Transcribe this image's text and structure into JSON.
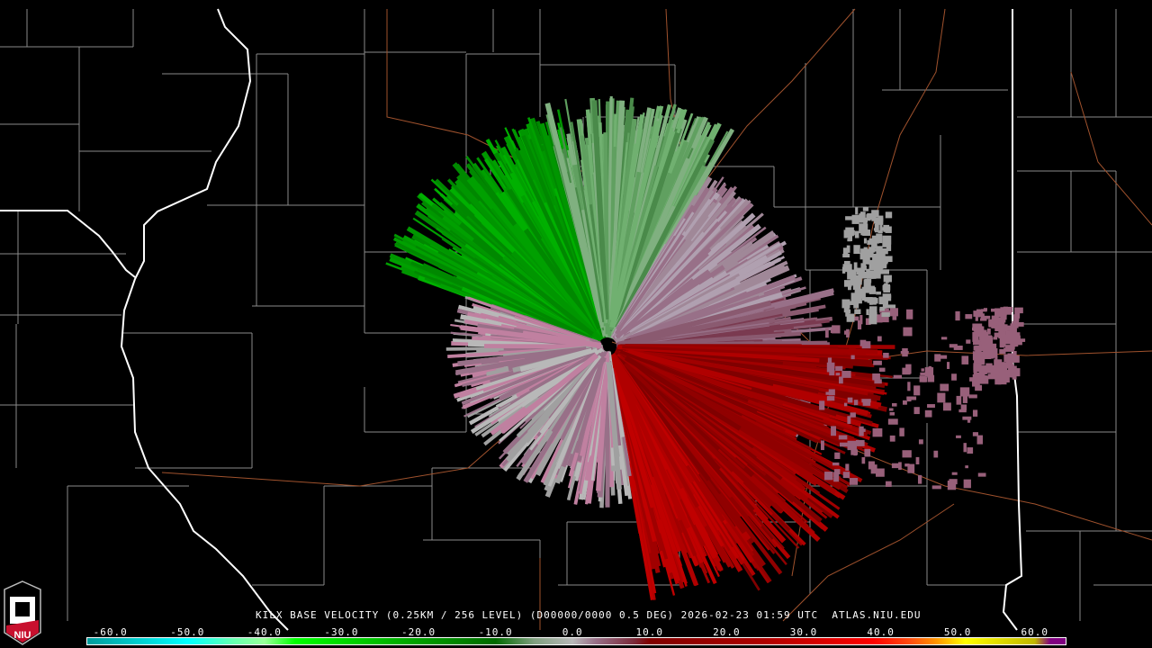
{
  "caption": {
    "station": "KILX",
    "product": "BASE VELOCITY",
    "resolution": "(0.25KM / 256 LEVEL)",
    "scan": "(D00000/0000 0.5 DEG)",
    "date": "2026-02-23",
    "time": "01:59 UTC",
    "source": "ATLAS.NIU.EDU"
  },
  "logo": {
    "text": "NIU",
    "color": "#c8102e"
  },
  "colorbar": {
    "ticks": [
      "-60.0",
      "-50.0",
      "-40.0",
      "-30.0",
      "-20.0",
      "-10.0",
      "0.0",
      "10.0",
      "20.0",
      "30.0",
      "40.0",
      "50.0",
      "60.0"
    ],
    "range": [
      -63,
      64
    ],
    "stops": [
      {
        "v": -63,
        "color": "#009c9c"
      },
      {
        "v": -55,
        "color": "#00d8d8"
      },
      {
        "v": -50,
        "color": "#00ffff"
      },
      {
        "v": -44,
        "color": "#66ffb0"
      },
      {
        "v": -40,
        "color": "#99ff99"
      },
      {
        "v": -36,
        "color": "#00ff00"
      },
      {
        "v": -20,
        "color": "#00a000"
      },
      {
        "v": -10,
        "color": "#006a00"
      },
      {
        "v": -5,
        "color": "#80a080"
      },
      {
        "v": 0,
        "color": "#b8b8b8"
      },
      {
        "v": 3,
        "color": "#987088"
      },
      {
        "v": 8,
        "color": "#7a2a3a"
      },
      {
        "v": 10,
        "color": "#800000"
      },
      {
        "v": 25,
        "color": "#b00000"
      },
      {
        "v": 39,
        "color": "#ff0000"
      },
      {
        "v": 44,
        "color": "#ff5010"
      },
      {
        "v": 47,
        "color": "#ff9000"
      },
      {
        "v": 51,
        "color": "#ffff00"
      },
      {
        "v": 60,
        "color": "#c0b800"
      },
      {
        "v": 62,
        "color": "#800080"
      }
    ]
  }
}
